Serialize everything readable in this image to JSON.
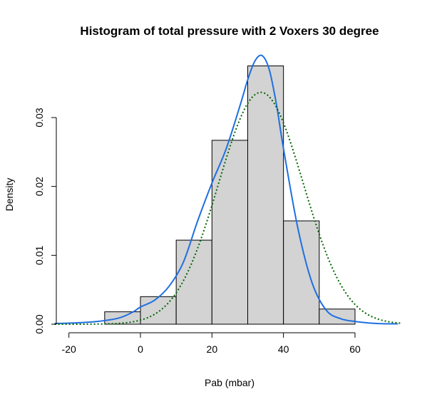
{
  "chart_data": {
    "type": "bar",
    "title": "Histogram of total pressure with 2 Voxers 30 degree",
    "xlabel": "Pab (mbar)",
    "ylabel": "Density",
    "xlim": [
      -24,
      73
    ],
    "ylim": [
      0,
      0.039
    ],
    "x_ticks": [
      -20,
      0,
      20,
      40,
      60
    ],
    "x_tick_labels": [
      "-20",
      "0",
      "20",
      "40",
      "60"
    ],
    "y_ticks": [
      0.0,
      0.01,
      0.02,
      0.03
    ],
    "y_tick_labels": [
      "0.00",
      "0.01",
      "0.02",
      "0.03"
    ],
    "bins": [
      {
        "start": -10,
        "end": 0,
        "value": 0.0018
      },
      {
        "start": 0,
        "end": 10,
        "value": 0.004
      },
      {
        "start": 10,
        "end": 20,
        "value": 0.0122
      },
      {
        "start": 20,
        "end": 30,
        "value": 0.0267
      },
      {
        "start": 30,
        "end": 40,
        "value": 0.0375
      },
      {
        "start": 40,
        "end": 50,
        "value": 0.015
      },
      {
        "start": 50,
        "end": 60,
        "value": 0.0022
      }
    ],
    "series": [
      {
        "kind": "density",
        "color": "#1f6fe0",
        "style": "solid",
        "x": [
          -24,
          -18,
          -12,
          -6,
          -2,
          0,
          4,
          8,
          12,
          16,
          20,
          24,
          28,
          30,
          32,
          34,
          36,
          38,
          40,
          44,
          48,
          52,
          56,
          60,
          66,
          72
        ],
        "y": [
          0.0001,
          0.0002,
          0.0004,
          0.0009,
          0.0018,
          0.0025,
          0.0035,
          0.0055,
          0.009,
          0.015,
          0.0205,
          0.0255,
          0.032,
          0.0355,
          0.0382,
          0.039,
          0.037,
          0.032,
          0.0255,
          0.014,
          0.006,
          0.002,
          0.0008,
          0.0004,
          0.0001,
          5e-05
        ]
      },
      {
        "kind": "normal",
        "color": "#006400",
        "style": "dotted",
        "mean": 33.7,
        "sd": 11.85,
        "x_range": [
          -24,
          73
        ]
      }
    ],
    "grid": false,
    "legend": "none"
  }
}
